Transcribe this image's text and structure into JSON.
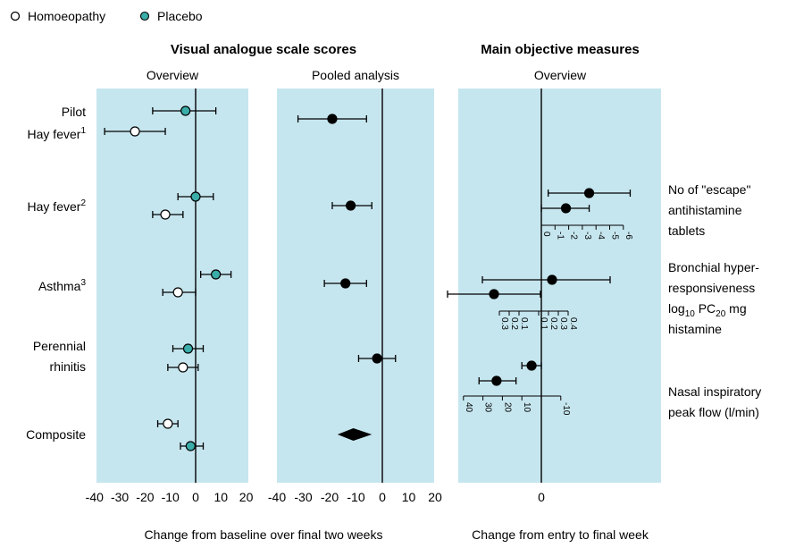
{
  "legend": {
    "homoeopathy": "Homoeopathy",
    "placebo": "Placebo"
  },
  "colors": {
    "panel_bg": "#c6e6ef",
    "placebo_fill": "#3aada9",
    "homoeopathy_fill": "#ffffff",
    "pooled_fill": "#000000"
  },
  "headings": {
    "vas": "Visual analogue scale scores",
    "objective": "Main objective measures",
    "overview_1": "Overview",
    "pooled": "Pooled analysis",
    "overview_2": "Overview"
  },
  "rows": {
    "pilot_line1": "Pilot",
    "pilot_line2": "Hay fever",
    "pilot_sup": "1",
    "hayfever2": "Hay fever",
    "hayfever2_sup": "2",
    "asthma": "Asthma",
    "asthma_sup": "3",
    "perennial_line1": "Perennial",
    "perennial_line2": "rhinitis",
    "composite": "Composite"
  },
  "measures": {
    "escape_1": "No of \"escape\"",
    "escape_2": "antihistamine",
    "escape_3": "tablets",
    "bronch_1": "Bronchial hyper-",
    "bronch_2": "responsiveness",
    "bronch_3a": "log",
    "bronch_3b": "10",
    "bronch_3c": " PC",
    "bronch_3d": "20",
    "bronch_3e": " mg",
    "bronch_4": "histamine",
    "nasal_1": "Nasal inspiratory",
    "nasal_2": "peak flow (l/min)"
  },
  "footers": {
    "vas": "Change from baseline over final two weeks",
    "objective": "Change from entry to final week"
  },
  "chart_data": [
    {
      "type": "scatter",
      "title": "Overview",
      "xlabel": "Change from baseline over final two weeks",
      "xlim": [
        -40,
        20
      ],
      "xticks": [
        -40,
        -30,
        -20,
        -10,
        0,
        10,
        20
      ],
      "grid": false,
      "points": [
        {
          "study": "Pilot Hay fever 1",
          "group": "Placebo",
          "x": -4,
          "ci": [
            -17,
            8
          ]
        },
        {
          "study": "Pilot Hay fever 1",
          "group": "Homoeopathy",
          "x": -24,
          "ci": [
            -36,
            -12
          ]
        },
        {
          "study": "Hay fever 2",
          "group": "Placebo",
          "x": 0,
          "ci": [
            -7,
            7
          ]
        },
        {
          "study": "Hay fever 2",
          "group": "Homoeopathy",
          "x": -12,
          "ci": [
            -17,
            -5
          ]
        },
        {
          "study": "Asthma 3",
          "group": "Placebo",
          "x": 8,
          "ci": [
            2,
            14
          ]
        },
        {
          "study": "Asthma 3",
          "group": "Homoeopathy",
          "x": -7,
          "ci": [
            -13,
            0
          ]
        },
        {
          "study": "Perennial rhinitis",
          "group": "Placebo",
          "x": -3,
          "ci": [
            -9,
            3
          ]
        },
        {
          "study": "Perennial rhinitis",
          "group": "Homoeopathy",
          "x": -5,
          "ci": [
            -11,
            1
          ]
        },
        {
          "study": "Composite",
          "group": "Homoeopathy",
          "x": -11,
          "ci": [
            -15,
            -7
          ]
        },
        {
          "study": "Composite",
          "group": "Placebo",
          "x": -2,
          "ci": [
            -6,
            3
          ]
        }
      ]
    },
    {
      "type": "scatter",
      "title": "Pooled analysis",
      "xlabel": "Change from baseline over final two weeks",
      "xlim": [
        -40,
        20
      ],
      "xticks": [
        -40,
        -30,
        -20,
        -10,
        0,
        10,
        20
      ],
      "grid": false,
      "points": [
        {
          "study": "Pilot Hay fever 1",
          "x": -19,
          "ci": [
            -32,
            -6
          ]
        },
        {
          "study": "Hay fever 2",
          "x": -12,
          "ci": [
            -19,
            -4
          ]
        },
        {
          "study": "Asthma 3",
          "x": -14,
          "ci": [
            -22,
            -6
          ]
        },
        {
          "study": "Perennial rhinitis",
          "x": -2,
          "ci": [
            -9,
            5
          ]
        }
      ],
      "pooled": {
        "study": "Composite",
        "x": -11,
        "ci": [
          -17,
          -4
        ]
      }
    },
    {
      "type": "scatter",
      "title": "Overview",
      "xlabel": "Change from entry to final week",
      "xticks": [
        0
      ],
      "grid": false,
      "measures": [
        {
          "name": "No of \"escape\" antihistamine tablets",
          "ticks": [
            "0",
            "-1",
            "-2",
            "-3",
            "-4",
            "-5",
            "-6"
          ],
          "points": [
            {
              "x": -3.5,
              "ci": [
                -0.5,
                -6.5
              ]
            },
            {
              "x": -1.8,
              "ci": [
                0,
                -3.5
              ]
            }
          ]
        },
        {
          "name": "Bronchial hyper-responsiveness log10 PC20 mg histamine",
          "ticks": [
            "0.3",
            "0.2",
            "0.1",
            "0.1",
            "0.2",
            "0.3",
            "0.4"
          ],
          "points": [
            {
              "x": 0.1,
              "ci": [
                -0.2,
                0.35
              ]
            },
            {
              "x": -0.15,
              "ci": [
                -0.35,
                0.05
              ]
            }
          ]
        },
        {
          "name": "Nasal inspiratory peak flow (l/min)",
          "ticks": [
            "40",
            "30",
            "20",
            "10",
            "-10"
          ],
          "points": [
            {
              "x": 5,
              "ci": [
                10,
                0
              ]
            },
            {
              "x": 23,
              "ci": [
                32,
                13
              ]
            }
          ]
        }
      ]
    }
  ]
}
